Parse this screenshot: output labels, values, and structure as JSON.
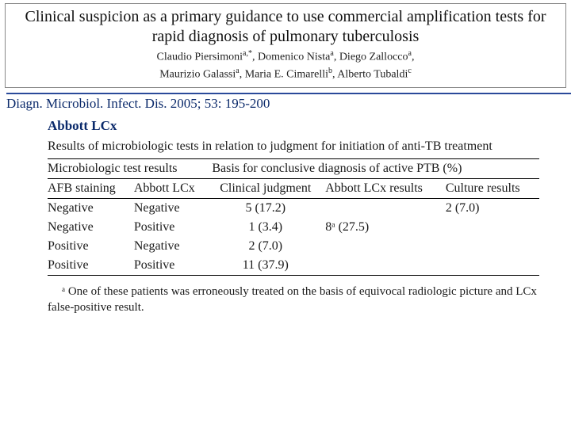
{
  "title": "Clinical suspicion as a primary guidance to use commercial amplification tests for rapid diagnosis of pulmonary tuberculosis",
  "authors_html": "Claudio Piersimoni<span class='sup'>a,*</span>, Domenico Nista<span class='sup'>a</span>, Diego Zallocco<span class='sup'>a</span>,<br>Maurizio Galassi<span class='sup'>a</span>, Maria E. Cimarelli<span class='sup'>b</span>, Alberto Tubaldi<span class='sup'>c</span>",
  "citation": "Diagn. Microbiol. Infect. Dis. 2005; 53: 195-200",
  "label_abbott": "Abbott LCx",
  "table": {
    "caption": "Results of microbiologic tests in relation to judgment for initiation of anti-TB treatment",
    "group_left": "Microbiologic test results",
    "group_right": "Basis for conclusive diagnosis of active PTB (%)",
    "columns": [
      "AFB staining",
      "Abbott LCx",
      "Clinical judgment",
      "Abbott LCx results",
      "Culture results"
    ],
    "rows": [
      [
        "Negative",
        "Negative",
        "5 (17.2)",
        "",
        "2 (7.0)"
      ],
      [
        "Negative",
        "Positive",
        "1 (3.4)",
        "8ᵃ (27.5)",
        ""
      ],
      [
        "Positive",
        "Negative",
        "2 (7.0)",
        "",
        ""
      ],
      [
        "Positive",
        "Positive",
        "11 (37.9)",
        "",
        ""
      ]
    ],
    "footnote": "ᵃ One of these patients was erroneously treated on the basis of equivocal radiologic picture and LCx false-positive result."
  },
  "colors": {
    "accent": "#0b2a6b",
    "rule": "#2a4a9a",
    "text": "#111111",
    "background": "#ffffff"
  }
}
